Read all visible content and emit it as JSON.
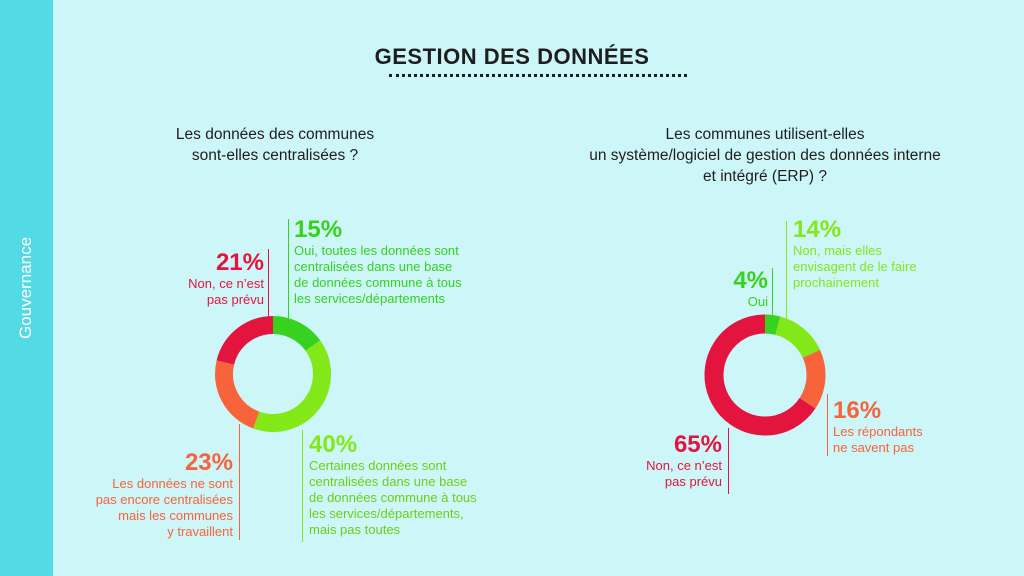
{
  "sidebar": {
    "label": "Gouvernance"
  },
  "title": "GESTION DES DONNÉES",
  "colors": {
    "background": "#cdf6f8",
    "sidebar": "#52dbe5",
    "green_dark": "#36d21e",
    "green_light": "#83e817",
    "orange": "#f7633b",
    "red": "#e3143e"
  },
  "chart_data": [
    {
      "type": "pie",
      "style": "donut",
      "title": "Les données des communes sont-elles centralisées ?",
      "title_lines": [
        "Les données des communes",
        "sont-elles centralisées ?"
      ],
      "slices": [
        {
          "value": 15,
          "label": "15%",
          "description": "Oui, toutes les données sont centralisées dans une base de données commune à tous les services/départements",
          "desc_lines": [
            "Oui, toutes les données sont",
            "centralisées dans une base",
            "de données commune à tous",
            "les services/départements"
          ],
          "color": "#36d21e"
        },
        {
          "value": 40,
          "label": "40%",
          "description": "Certaines données sont centralisées dans une base de données commune à tous les services/départements, mais pas toutes",
          "desc_lines": [
            "Certaines données sont",
            "centralisées dans une base",
            "de données commune à tous",
            "les services/départements,",
            "mais pas toutes"
          ],
          "color": "#83e817"
        },
        {
          "value": 23,
          "label": "23%",
          "description": "Les données ne sont pas encore centralisées mais les communes y travaillent",
          "desc_lines": [
            "Les données ne sont",
            "pas encore centralisées",
            "mais les communes",
            "y travaillent"
          ],
          "color": "#f7633b"
        },
        {
          "value": 21,
          "label": "21%",
          "description": "Non, ce n’est pas prévu",
          "desc_lines": [
            "Non, ce n’est",
            "pas prévu"
          ],
          "color": "#e3143e"
        }
      ]
    },
    {
      "type": "pie",
      "style": "donut",
      "title": "Les communes utilisent-elles un système/logiciel de gestion des données interne et intégré (ERP) ?",
      "title_lines": [
        "Les communes utilisent-elles",
        "un système/logiciel de gestion des données interne",
        "et intégré (ERP) ?"
      ],
      "slices": [
        {
          "value": 4,
          "label": "4%",
          "description": "Oui",
          "desc_lines": [
            "Oui"
          ],
          "color": "#36d21e"
        },
        {
          "value": 14,
          "label": "14%",
          "description": "Non, mais elles envisagent de le faire prochainement",
          "desc_lines": [
            "Non, mais elles",
            "envisagent de le faire",
            "prochainement"
          ],
          "color": "#83e817"
        },
        {
          "value": 16,
          "label": "16%",
          "description": "Les répondants ne savent pas",
          "desc_lines": [
            "Les répondants",
            "ne savent pas"
          ],
          "color": "#f7633b"
        },
        {
          "value": 65,
          "label": "65%",
          "description": "Non, ce n’est pas prévu",
          "desc_lines": [
            "Non, ce n’est",
            "pas prévu"
          ],
          "color": "#e3143e"
        }
      ]
    }
  ]
}
